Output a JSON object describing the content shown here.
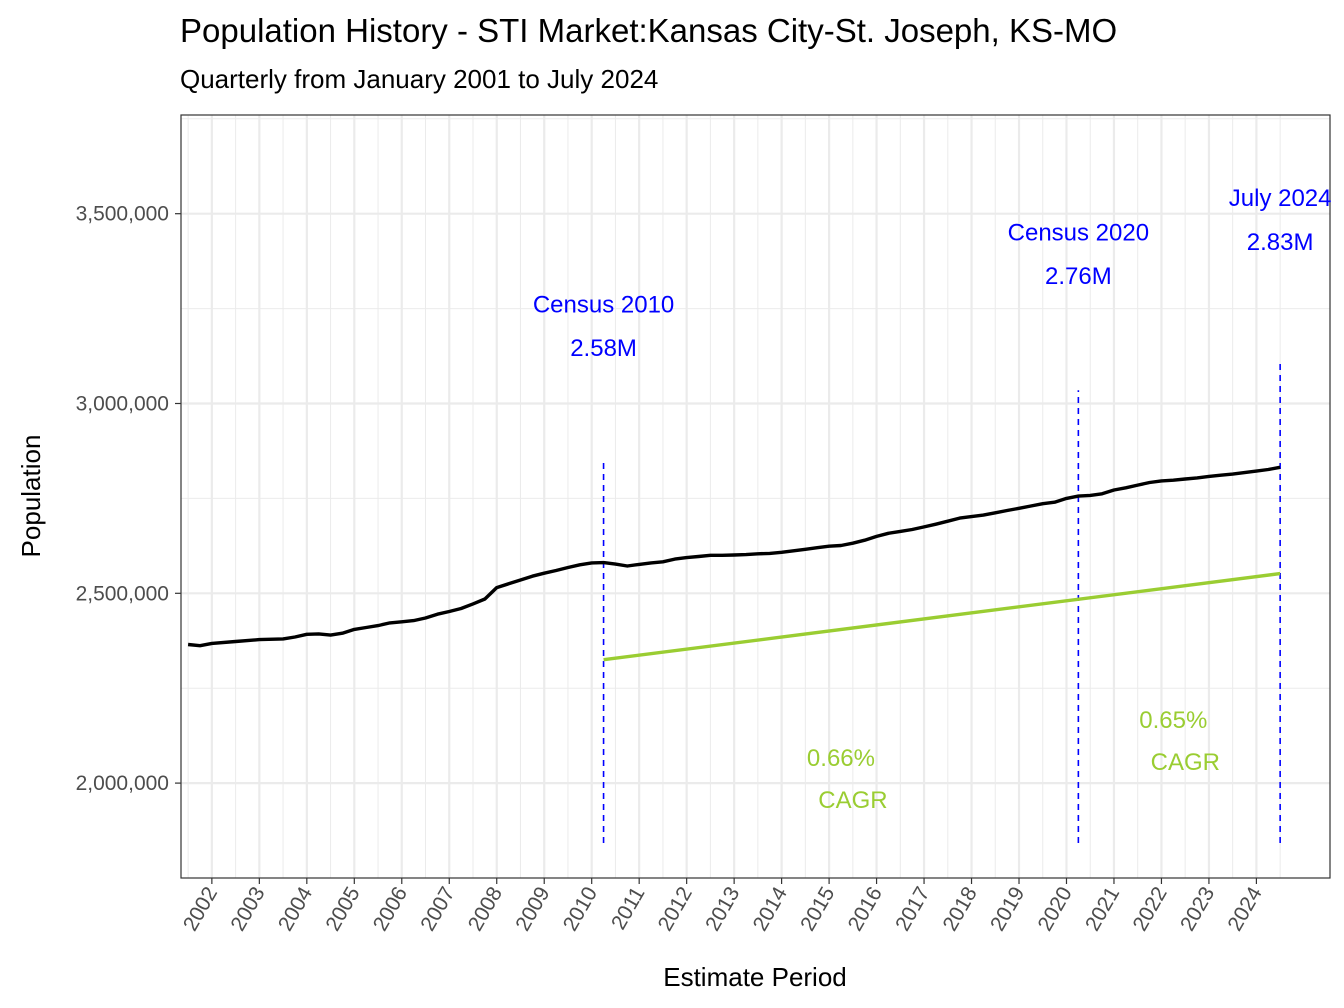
{
  "title": "Population History - STI Market:Kansas City-St. Joseph, KS-MO",
  "subtitle": "Quarterly from January 2001 to July 2024",
  "chart_data": {
    "type": "line",
    "xlabel": "Estimate Period",
    "ylabel": "Population",
    "xlim": [
      2001.35,
      2025.55
    ],
    "ylim": [
      1750000,
      3760000
    ],
    "x_ticks": [
      "2002",
      "2003",
      "2004",
      "2005",
      "2006",
      "2007",
      "2008",
      "2009",
      "2010",
      "2011",
      "2012",
      "2013",
      "2014",
      "2015",
      "2016",
      "2017",
      "2018",
      "2019",
      "2020",
      "2021",
      "2022",
      "2023",
      "2024"
    ],
    "y_ticks": [
      {
        "value": 2000000,
        "label": "2,000,000"
      },
      {
        "value": 2500000,
        "label": "2,500,000"
      },
      {
        "value": 3000000,
        "label": "3,000,000"
      },
      {
        "value": 3500000,
        "label": "3,500,000"
      }
    ],
    "colors": {
      "population": "#000000",
      "cagr": "#9ACD32",
      "markers": "#0000FF",
      "grid": "#EBEBEB"
    },
    "series": [
      {
        "name": "Population",
        "x": [
          2001.5,
          2001.75,
          2002.0,
          2002.5,
          2003.0,
          2003.5,
          2003.75,
          2004.0,
          2004.25,
          2004.5,
          2004.75,
          2005.0,
          2005.25,
          2005.5,
          2005.75,
          2006.0,
          2006.25,
          2006.5,
          2006.75,
          2007.0,
          2007.25,
          2007.5,
          2007.75,
          2008.0,
          2008.25,
          2008.5,
          2008.75,
          2009.0,
          2009.25,
          2009.5,
          2009.75,
          2010.0,
          2010.25,
          2010.5,
          2010.75,
          2011.0,
          2011.25,
          2011.5,
          2011.75,
          2012.0,
          2012.25,
          2012.5,
          2012.75,
          2013.0,
          2013.25,
          2013.5,
          2013.75,
          2014.0,
          2014.25,
          2014.5,
          2014.75,
          2015.0,
          2015.25,
          2015.5,
          2015.75,
          2016.0,
          2016.25,
          2016.5,
          2016.75,
          2017.0,
          2017.25,
          2017.5,
          2017.75,
          2018.0,
          2018.25,
          2018.5,
          2018.75,
          2019.0,
          2019.25,
          2019.5,
          2019.75,
          2020.0,
          2020.25,
          2020.5,
          2020.75,
          2021.0,
          2021.25,
          2021.5,
          2021.75,
          2022.0,
          2022.25,
          2022.5,
          2022.75,
          2023.0,
          2023.25,
          2023.5,
          2023.75,
          2024.0,
          2024.25,
          2024.5
        ],
        "values": [
          2365000,
          2362000,
          2368000,
          2373000,
          2378000,
          2380000,
          2385000,
          2392000,
          2393000,
          2390000,
          2395000,
          2405000,
          2410000,
          2415000,
          2422000,
          2425000,
          2428000,
          2435000,
          2445000,
          2452000,
          2460000,
          2472000,
          2485000,
          2515000,
          2525000,
          2535000,
          2545000,
          2553000,
          2560000,
          2568000,
          2575000,
          2580000,
          2581000,
          2577000,
          2572000,
          2576000,
          2580000,
          2583000,
          2590000,
          2594000,
          2597000,
          2600000,
          2600000,
          2601000,
          2602000,
          2604000,
          2605000,
          2608000,
          2612000,
          2616000,
          2620000,
          2624000,
          2626000,
          2632000,
          2640000,
          2650000,
          2658000,
          2663000,
          2668000,
          2675000,
          2682000,
          2690000,
          2698000,
          2702000,
          2706000,
          2712000,
          2718000,
          2724000,
          2730000,
          2736000,
          2740000,
          2750000,
          2756000,
          2758000,
          2762000,
          2772000,
          2778000,
          2785000,
          2792000,
          2796000,
          2798000,
          2801000,
          2804000,
          2808000,
          2811000,
          2814000,
          2818000,
          2822000,
          2826000,
          2832000
        ]
      },
      {
        "name": "CAGR trend",
        "x": [
          2010.25,
          2024.5
        ],
        "values": [
          2325000,
          2552000
        ]
      }
    ],
    "vlines": [
      2010.25,
      2020.25,
      2024.5
    ],
    "annotations": [
      {
        "line1": "Census 2010",
        "line2": "2.58M",
        "x": 2010.25,
        "y1": 3240000,
        "y2": 3125000
      },
      {
        "line1": "Census 2020",
        "line2": "2.76M",
        "x": 2020.25,
        "y1": 3430000,
        "y2": 3315000
      },
      {
        "line1": "July 2024",
        "line2": "2.83M",
        "x": 2024.5,
        "y1": 3520000,
        "y2": 3405000
      }
    ],
    "cagr_labels": [
      {
        "line1": "0.66%",
        "line2": "CAGR",
        "x": 2015.25,
        "y1": 2045000,
        "y2": 1935000
      },
      {
        "line1": "0.65%",
        "line2": "CAGR",
        "x": 2022.25,
        "y1": 2145000,
        "y2": 2035000
      }
    ]
  }
}
